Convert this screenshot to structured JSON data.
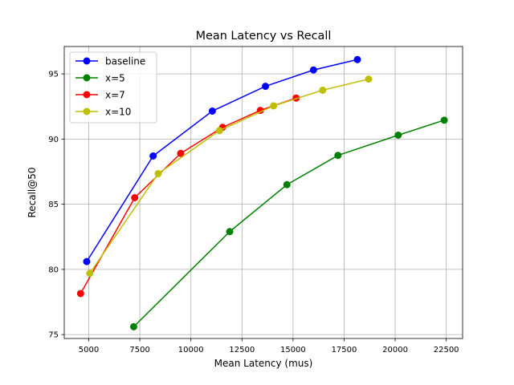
{
  "chart_data": {
    "type": "line",
    "title": "Mean Latency vs Recall",
    "xlabel": "Mean Latency (mus)",
    "ylabel": "Recall@50",
    "xlim": [
      3800,
      23300
    ],
    "ylim": [
      74.7,
      97.1
    ],
    "x_ticks": [
      5000,
      7500,
      10000,
      12500,
      15000,
      17500,
      20000,
      22500
    ],
    "y_ticks": [
      75,
      80,
      85,
      90,
      95
    ],
    "grid": true,
    "legend_position": "top-left",
    "series": [
      {
        "name": "baseline",
        "color": "#0000ff",
        "marker": "circle",
        "points": [
          [
            4900,
            80.6
          ],
          [
            8150,
            88.7
          ],
          [
            11050,
            92.15
          ],
          [
            13650,
            94.05
          ],
          [
            16000,
            95.3
          ],
          [
            18150,
            96.1
          ]
        ]
      },
      {
        "name": "x=5",
        "color": "#008000",
        "marker": "circle",
        "points": [
          [
            7200,
            75.6
          ],
          [
            11900,
            82.9
          ],
          [
            14700,
            86.5
          ],
          [
            17200,
            88.75
          ],
          [
            20150,
            90.3
          ],
          [
            22400,
            91.45
          ]
        ]
      },
      {
        "name": "x=7",
        "color": "#ff0000",
        "marker": "circle",
        "points": [
          [
            4600,
            78.15
          ],
          [
            7250,
            85.5
          ],
          [
            9500,
            88.9
          ],
          [
            11550,
            90.9
          ],
          [
            13400,
            92.2
          ],
          [
            15150,
            93.15
          ]
        ]
      },
      {
        "name": "x=10",
        "color": "#bfbf00",
        "marker": "circle",
        "points": [
          [
            5050,
            79.7
          ],
          [
            8400,
            87.35
          ],
          [
            11400,
            90.65
          ],
          [
            14050,
            92.55
          ],
          [
            16450,
            93.75
          ],
          [
            18700,
            94.6
          ]
        ]
      }
    ]
  }
}
